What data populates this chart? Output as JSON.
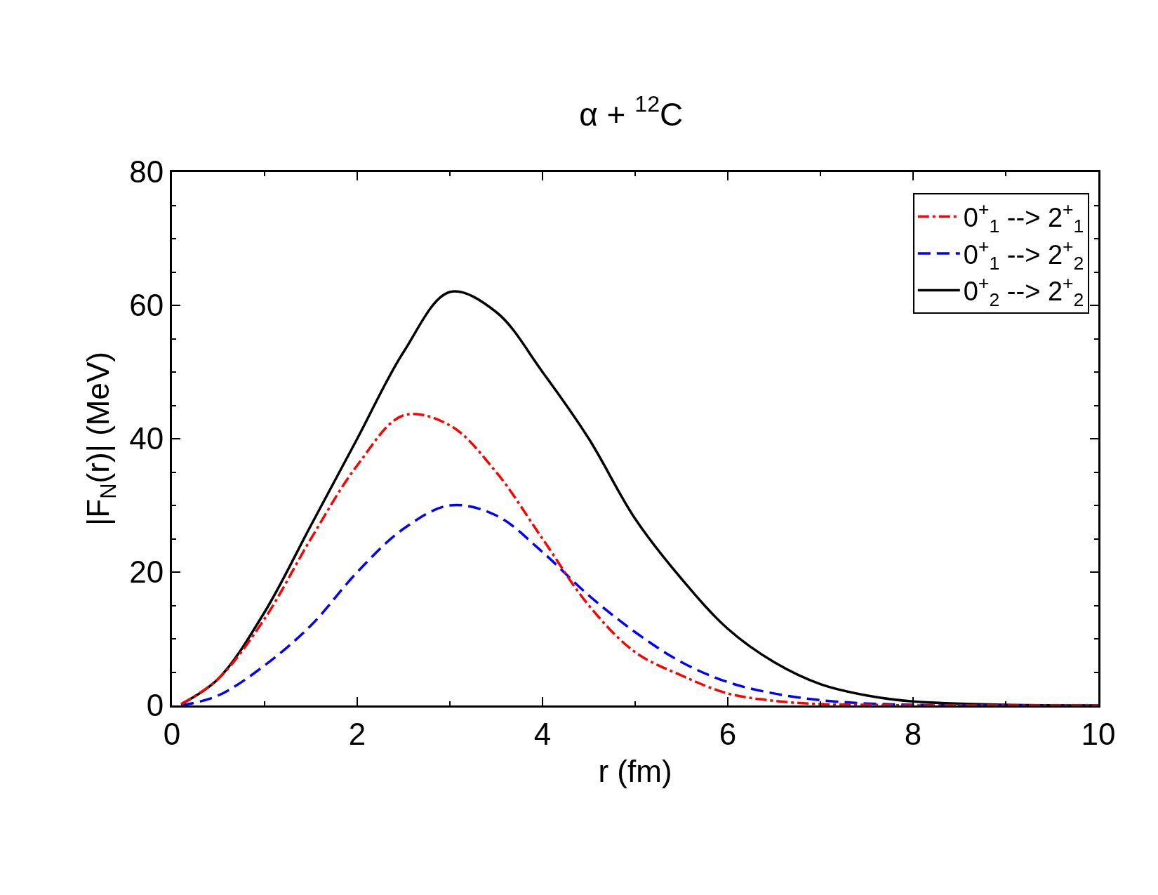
{
  "chart_data": {
    "type": "line",
    "title": "α + $^{12}$C",
    "xlabel": "r (fm)",
    "ylabel": "|F$_{N}$(r)| (MeV)",
    "xlim": [
      0,
      10
    ],
    "ylim": [
      0,
      80
    ],
    "xticks": [
      0,
      2,
      4,
      6,
      8,
      10
    ],
    "yticks": [
      0,
      20,
      40,
      60,
      80
    ],
    "legend": "top right",
    "marker": "none",
    "series": [
      {
        "name": "0$^{+}$$_{1}$ --> 2$^{+}$$_{1}$",
        "color": "#ff0000",
        "line_style": "dashdot",
        "x": [
          0.1,
          0.5,
          1,
          1.5,
          2,
          2.5,
          3,
          3.5,
          4,
          4.5,
          5,
          5.5,
          6,
          6.5,
          7,
          7.5,
          8,
          9,
          10
        ],
        "values": [
          0.2,
          4,
          13,
          25,
          36,
          43.5,
          42,
          35,
          25,
          15,
          8,
          4.5,
          1.8,
          0.7,
          0.2,
          0.1,
          0,
          0,
          0
        ]
      },
      {
        "name": "0$^{+}$$_{1}$ --> 2$^{+}$$_{2}$",
        "color": "#0000ff",
        "line_style": "dashed",
        "x": [
          0.1,
          0.5,
          1,
          1.5,
          2,
          2.5,
          3,
          3.5,
          4,
          4.5,
          5,
          5.5,
          6,
          6.5,
          7,
          7.5,
          8,
          9,
          10
        ],
        "values": [
          0,
          1.5,
          6,
          12,
          20,
          26.5,
          30,
          28.5,
          23,
          16.5,
          11,
          6.5,
          3.5,
          1.8,
          0.8,
          0.3,
          0.1,
          0,
          0
        ]
      },
      {
        "name": "0$^{+}$$_{2}$ --> 2$^{+}$$_{2}$",
        "color": "#000000",
        "line_style": "solid",
        "x": [
          0.1,
          0.5,
          1,
          1.5,
          2,
          2.5,
          3,
          3.5,
          4,
          4.5,
          5,
          5.5,
          6,
          6.5,
          7,
          7.5,
          8,
          9,
          10
        ],
        "values": [
          0.2,
          4,
          14,
          27,
          40,
          53,
          62,
          59,
          50,
          40,
          28,
          19,
          11.5,
          6.5,
          3.2,
          1.5,
          0.6,
          0.1,
          0
        ]
      }
    ]
  }
}
